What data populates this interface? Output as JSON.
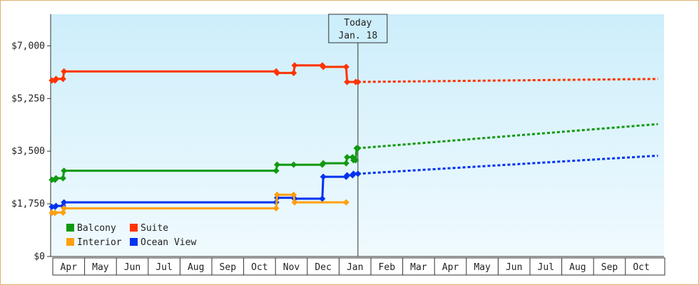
{
  "chart_data": {
    "type": "line",
    "title": "",
    "xlabel": "",
    "ylabel": "",
    "ylim": [
      0,
      8050
    ],
    "y_ticks": [
      "$7,000",
      "$5,250",
      "$3,500",
      "$1,750",
      "$0"
    ],
    "y_tick_values": [
      7000,
      5250,
      3500,
      1750,
      0
    ],
    "months": [
      "Apr",
      "May",
      "Jun",
      "Jul",
      "Aug",
      "Sep",
      "Oct",
      "Nov",
      "Dec",
      "Jan",
      "Feb",
      "Mar",
      "Apr",
      "May",
      "Jun",
      "Jul",
      "Aug",
      "Sep",
      "Oct"
    ],
    "x_start": "Mar 30",
    "today": {
      "line1": "Today",
      "line2": "Jan. 18",
      "month_index": 9.57
    },
    "legend": [
      {
        "label": "Balcony",
        "color": "#119911"
      },
      {
        "label": "Suite",
        "color": "#ff3300"
      },
      {
        "label": "Interior",
        "color": "#ffa010"
      },
      {
        "label": "Ocean View",
        "color": "#0033ee"
      }
    ],
    "series": [
      {
        "name": "Suite",
        "color": "#ff3300",
        "history": [
          [
            -0.05,
            5850
          ],
          [
            0.05,
            5850
          ],
          [
            0.08,
            5900
          ],
          [
            0.3,
            5900
          ],
          [
            0.33,
            6150
          ],
          [
            7.0,
            6150
          ],
          [
            7.03,
            6100
          ],
          [
            7.55,
            6100
          ],
          [
            7.58,
            6350
          ],
          [
            8.45,
            6350
          ],
          [
            8.48,
            6300
          ],
          [
            9.2,
            6300
          ],
          [
            9.23,
            5800
          ],
          [
            9.57,
            5800
          ]
        ],
        "markers": [
          [
            -0.05,
            5850
          ],
          [
            0.05,
            5850
          ],
          [
            0.08,
            5900
          ],
          [
            0.3,
            5900
          ],
          [
            0.33,
            6150
          ],
          [
            7.0,
            6150
          ],
          [
            7.03,
            6100
          ],
          [
            7.55,
            6100
          ],
          [
            7.58,
            6350
          ],
          [
            8.45,
            6350
          ],
          [
            8.48,
            6300
          ],
          [
            9.2,
            6300
          ],
          [
            9.23,
            5800
          ],
          [
            9.5,
            5800
          ],
          [
            9.57,
            5800
          ]
        ],
        "forecast": [
          [
            9.57,
            5800
          ],
          [
            19.0,
            5900
          ]
        ]
      },
      {
        "name": "Balcony",
        "color": "#119911",
        "history": [
          [
            -0.05,
            2550
          ],
          [
            0.05,
            2550
          ],
          [
            0.08,
            2600
          ],
          [
            0.3,
            2600
          ],
          [
            0.33,
            2850
          ],
          [
            7.0,
            2850
          ],
          [
            7.03,
            3050
          ],
          [
            7.55,
            3050
          ],
          [
            7.58,
            3050
          ],
          [
            8.45,
            3050
          ],
          [
            8.48,
            3100
          ],
          [
            9.2,
            3100
          ],
          [
            9.23,
            3300
          ],
          [
            9.4,
            3300
          ],
          [
            9.43,
            3200
          ],
          [
            9.5,
            3200
          ],
          [
            9.53,
            3600
          ],
          [
            9.57,
            3600
          ]
        ],
        "markers": [
          [
            -0.05,
            2550
          ],
          [
            0.05,
            2550
          ],
          [
            0.08,
            2600
          ],
          [
            0.3,
            2600
          ],
          [
            0.33,
            2850
          ],
          [
            7.0,
            2850
          ],
          [
            7.03,
            3050
          ],
          [
            7.55,
            3050
          ],
          [
            8.45,
            3050
          ],
          [
            8.48,
            3100
          ],
          [
            9.2,
            3100
          ],
          [
            9.23,
            3300
          ],
          [
            9.4,
            3300
          ],
          [
            9.43,
            3200
          ],
          [
            9.5,
            3200
          ],
          [
            9.53,
            3600
          ],
          [
            9.57,
            3600
          ]
        ],
        "forecast": [
          [
            9.57,
            3600
          ],
          [
            19.0,
            4400
          ]
        ]
      },
      {
        "name": "Ocean View",
        "color": "#0033ee",
        "history": [
          [
            -0.05,
            1650
          ],
          [
            0.05,
            1650
          ],
          [
            0.08,
            1680
          ],
          [
            0.3,
            1680
          ],
          [
            0.33,
            1800
          ],
          [
            7.0,
            1800
          ],
          [
            7.03,
            1950
          ],
          [
            7.55,
            1950
          ],
          [
            7.58,
            1920
          ],
          [
            8.45,
            1920
          ],
          [
            8.48,
            2650
          ],
          [
            9.2,
            2650
          ],
          [
            9.23,
            2700
          ],
          [
            9.4,
            2700
          ],
          [
            9.43,
            2750
          ],
          [
            9.57,
            2750
          ]
        ],
        "markers": [
          [
            -0.05,
            1650
          ],
          [
            0.05,
            1650
          ],
          [
            0.08,
            1680
          ],
          [
            0.3,
            1680
          ],
          [
            0.33,
            1800
          ],
          [
            7.0,
            1800
          ],
          [
            7.03,
            1950
          ],
          [
            7.55,
            1950
          ],
          [
            7.58,
            1920
          ],
          [
            8.45,
            1920
          ],
          [
            8.48,
            2650
          ],
          [
            9.2,
            2650
          ],
          [
            9.23,
            2700
          ],
          [
            9.4,
            2700
          ],
          [
            9.43,
            2750
          ],
          [
            9.57,
            2750
          ]
        ],
        "forecast": [
          [
            9.57,
            2750
          ],
          [
            19.0,
            3350
          ]
        ]
      },
      {
        "name": "Interior",
        "color": "#ffa010",
        "history": [
          [
            -0.05,
            1450
          ],
          [
            0.05,
            1450
          ],
          [
            0.08,
            1460
          ],
          [
            0.3,
            1460
          ],
          [
            0.33,
            1600
          ],
          [
            7.0,
            1600
          ],
          [
            7.03,
            2050
          ],
          [
            7.55,
            2050
          ],
          [
            7.58,
            1800
          ],
          [
            9.2,
            1800
          ]
        ],
        "markers": [
          [
            -0.05,
            1450
          ],
          [
            0.05,
            1450
          ],
          [
            0.3,
            1460
          ],
          [
            0.33,
            1600
          ],
          [
            7.0,
            1600
          ],
          [
            7.03,
            2050
          ],
          [
            7.55,
            2050
          ],
          [
            7.58,
            1800
          ],
          [
            9.2,
            1800
          ]
        ],
        "forecast": []
      }
    ]
  }
}
